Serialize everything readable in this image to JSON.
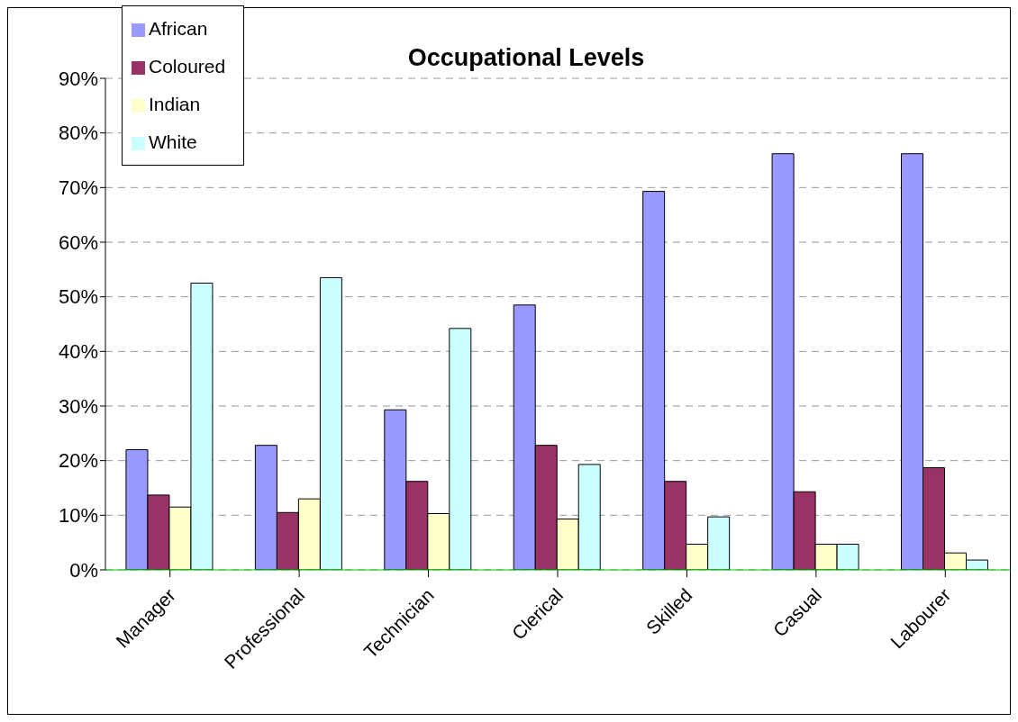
{
  "chart_data": {
    "type": "bar",
    "title": "Occupational Levels",
    "categories": [
      "Manager",
      "Professional",
      "Technician",
      "Clerical",
      "Skilled",
      "Casual",
      "Labourer"
    ],
    "series": [
      {
        "name": "African",
        "color": "#9999ff",
        "values": [
          22,
          22.8,
          29.3,
          48.5,
          69.3,
          76.2,
          76.2
        ]
      },
      {
        "name": "Coloured",
        "color": "#993366",
        "values": [
          13.7,
          10.5,
          16.2,
          22.8,
          16.2,
          14.3,
          18.7
        ]
      },
      {
        "name": "Indian",
        "color": "#ffffcc",
        "values": [
          11.5,
          13,
          10.3,
          9.3,
          4.7,
          4.7,
          3.1
        ]
      },
      {
        "name": "White",
        "color": "#ccffff",
        "values": [
          52.5,
          53.5,
          44.2,
          19.3,
          9.7,
          4.7,
          1.8
        ]
      }
    ],
    "ylim": [
      0,
      90
    ],
    "yticks": [
      {
        "value": 0,
        "label": "0%"
      },
      {
        "value": 10,
        "label": "10%"
      },
      {
        "value": 20,
        "label": "20%"
      },
      {
        "value": 30,
        "label": "30%"
      },
      {
        "value": 40,
        "label": "40%"
      },
      {
        "value": 50,
        "label": "50%"
      },
      {
        "value": 60,
        "label": "60%"
      },
      {
        "value": 70,
        "label": "70%"
      },
      {
        "value": 80,
        "label": "80%"
      },
      {
        "value": 90,
        "label": "90%"
      }
    ],
    "grid": "y",
    "legend": "top left"
  }
}
